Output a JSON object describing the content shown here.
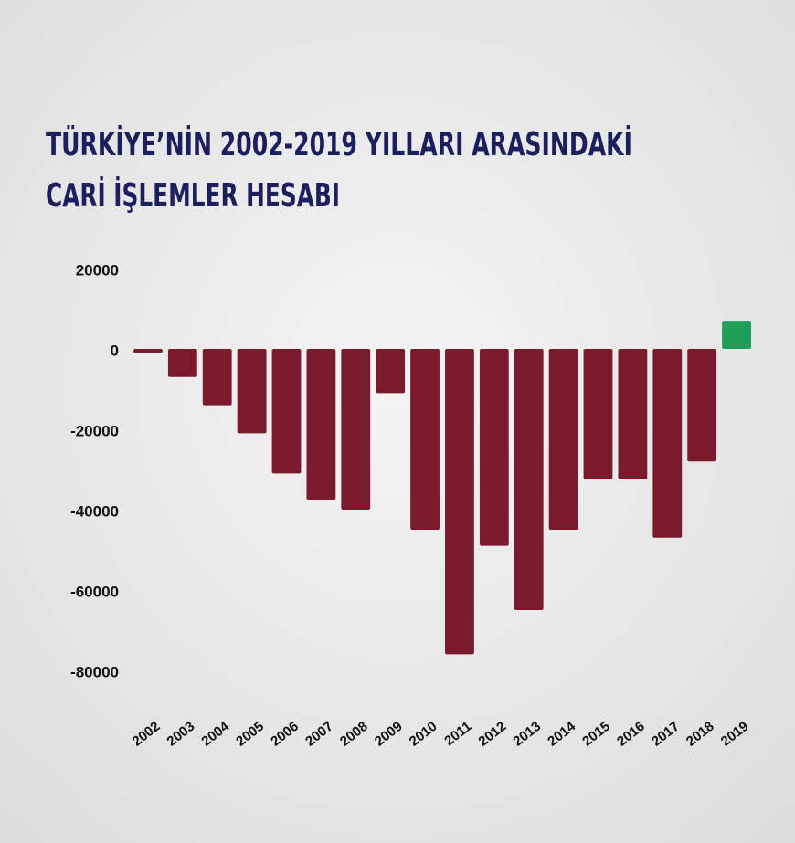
{
  "chart_data": {
    "type": "bar",
    "title": [
      "TÜRKİYE’NİN 2002-2019 YILLARI ARASINDAKİ",
      "CARİ İŞLEMLER HESABI"
    ],
    "categories": [
      "2002",
      "2003",
      "2004",
      "2005",
      "2006",
      "2007",
      "2008",
      "2009",
      "2010",
      "2011",
      "2012",
      "2013",
      "2014",
      "2015",
      "2016",
      "2017",
      "2018",
      "2019"
    ],
    "values": [
      -1000,
      -7000,
      -14000,
      -21000,
      -31000,
      -37500,
      -40000,
      -11000,
      -45000,
      -76000,
      -49000,
      -65000,
      -45000,
      -32500,
      -32500,
      -47000,
      -28000,
      6800
    ],
    "colors": {
      "negative": "#7a1a2d",
      "positive": "#1f9e5a"
    },
    "ylim": [
      -90000,
      30000
    ],
    "yticks": [
      20000,
      0,
      -20000,
      -40000,
      -60000,
      -80000
    ],
    "grid": false
  }
}
